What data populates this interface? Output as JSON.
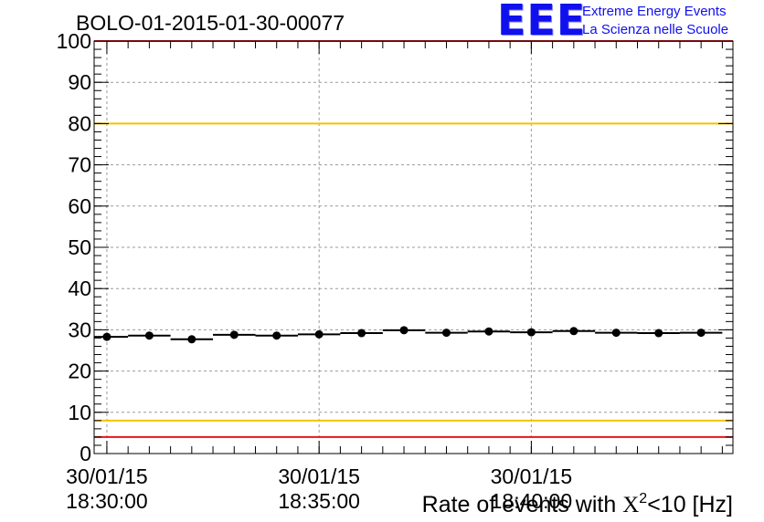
{
  "chart_data": {
    "type": "scatter",
    "title": "BOLO-01-2015-01-30-00077",
    "xlabel": "Rate of events with X²<10 [Hz]",
    "xlabel_parts": {
      "before": "Rate of events with ",
      "chi": "X",
      "sup": "2",
      "after": "<10 [Hz]"
    },
    "ylabel": "",
    "ylim": [
      0,
      100
    ],
    "y_ticks": [
      "0",
      "10",
      "20",
      "30",
      "40",
      "50",
      "60",
      "70",
      "80",
      "90",
      "100"
    ],
    "x_unit": "minutes after 18:30:00",
    "xlim": [
      -0.3,
      14.75
    ],
    "x_ticks": [
      {
        "value": 0,
        "date": "30/01/15",
        "time": "18:30:00"
      },
      {
        "value": 5,
        "date": "30/01/15",
        "time": "18:35:00"
      },
      {
        "value": 10,
        "date": "30/01/15",
        "time": "18:40:00"
      }
    ],
    "bin_width": 1.0,
    "series": [
      {
        "name": "rate",
        "x": [
          0,
          1,
          2,
          3,
          4,
          5,
          6,
          7,
          8,
          9,
          10,
          11,
          12,
          13,
          14
        ],
        "values": [
          28.3,
          28.6,
          27.7,
          28.8,
          28.6,
          28.9,
          29.2,
          29.9,
          29.3,
          29.6,
          29.4,
          29.7,
          29.3,
          29.2,
          29.3
        ]
      }
    ],
    "reference_lines": [
      {
        "y": 4,
        "color": "#e8141b"
      },
      {
        "y": 8,
        "color": "#f2c400"
      },
      {
        "y": 80,
        "color": "#f2c400"
      },
      {
        "y": 100,
        "color": "#e8141b"
      }
    ],
    "grid": true
  },
  "logo": {
    "mark": "EEE",
    "line1": "Extreme Energy Events",
    "line2": "La Scienza nelle Scuole"
  }
}
